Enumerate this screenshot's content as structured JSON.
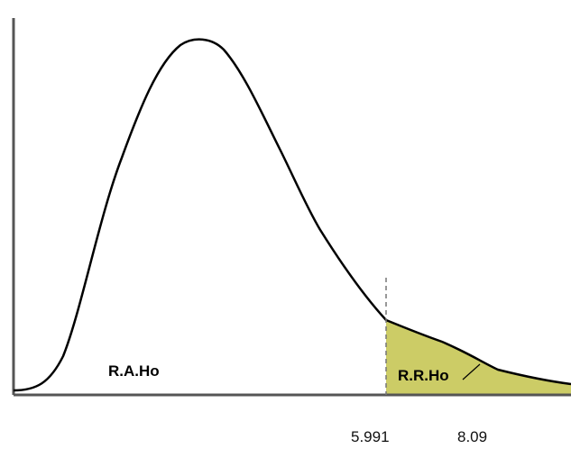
{
  "labels": {
    "acceptance_region": "R.A.Ho",
    "rejection_region": "R.R.Ho",
    "critical_value": "5.991",
    "test_statistic": "8.09"
  },
  "colors": {
    "curve": "#000000",
    "axis": "#555555",
    "rejection_fill": "#cccc66",
    "critical_line": "#777777"
  }
}
